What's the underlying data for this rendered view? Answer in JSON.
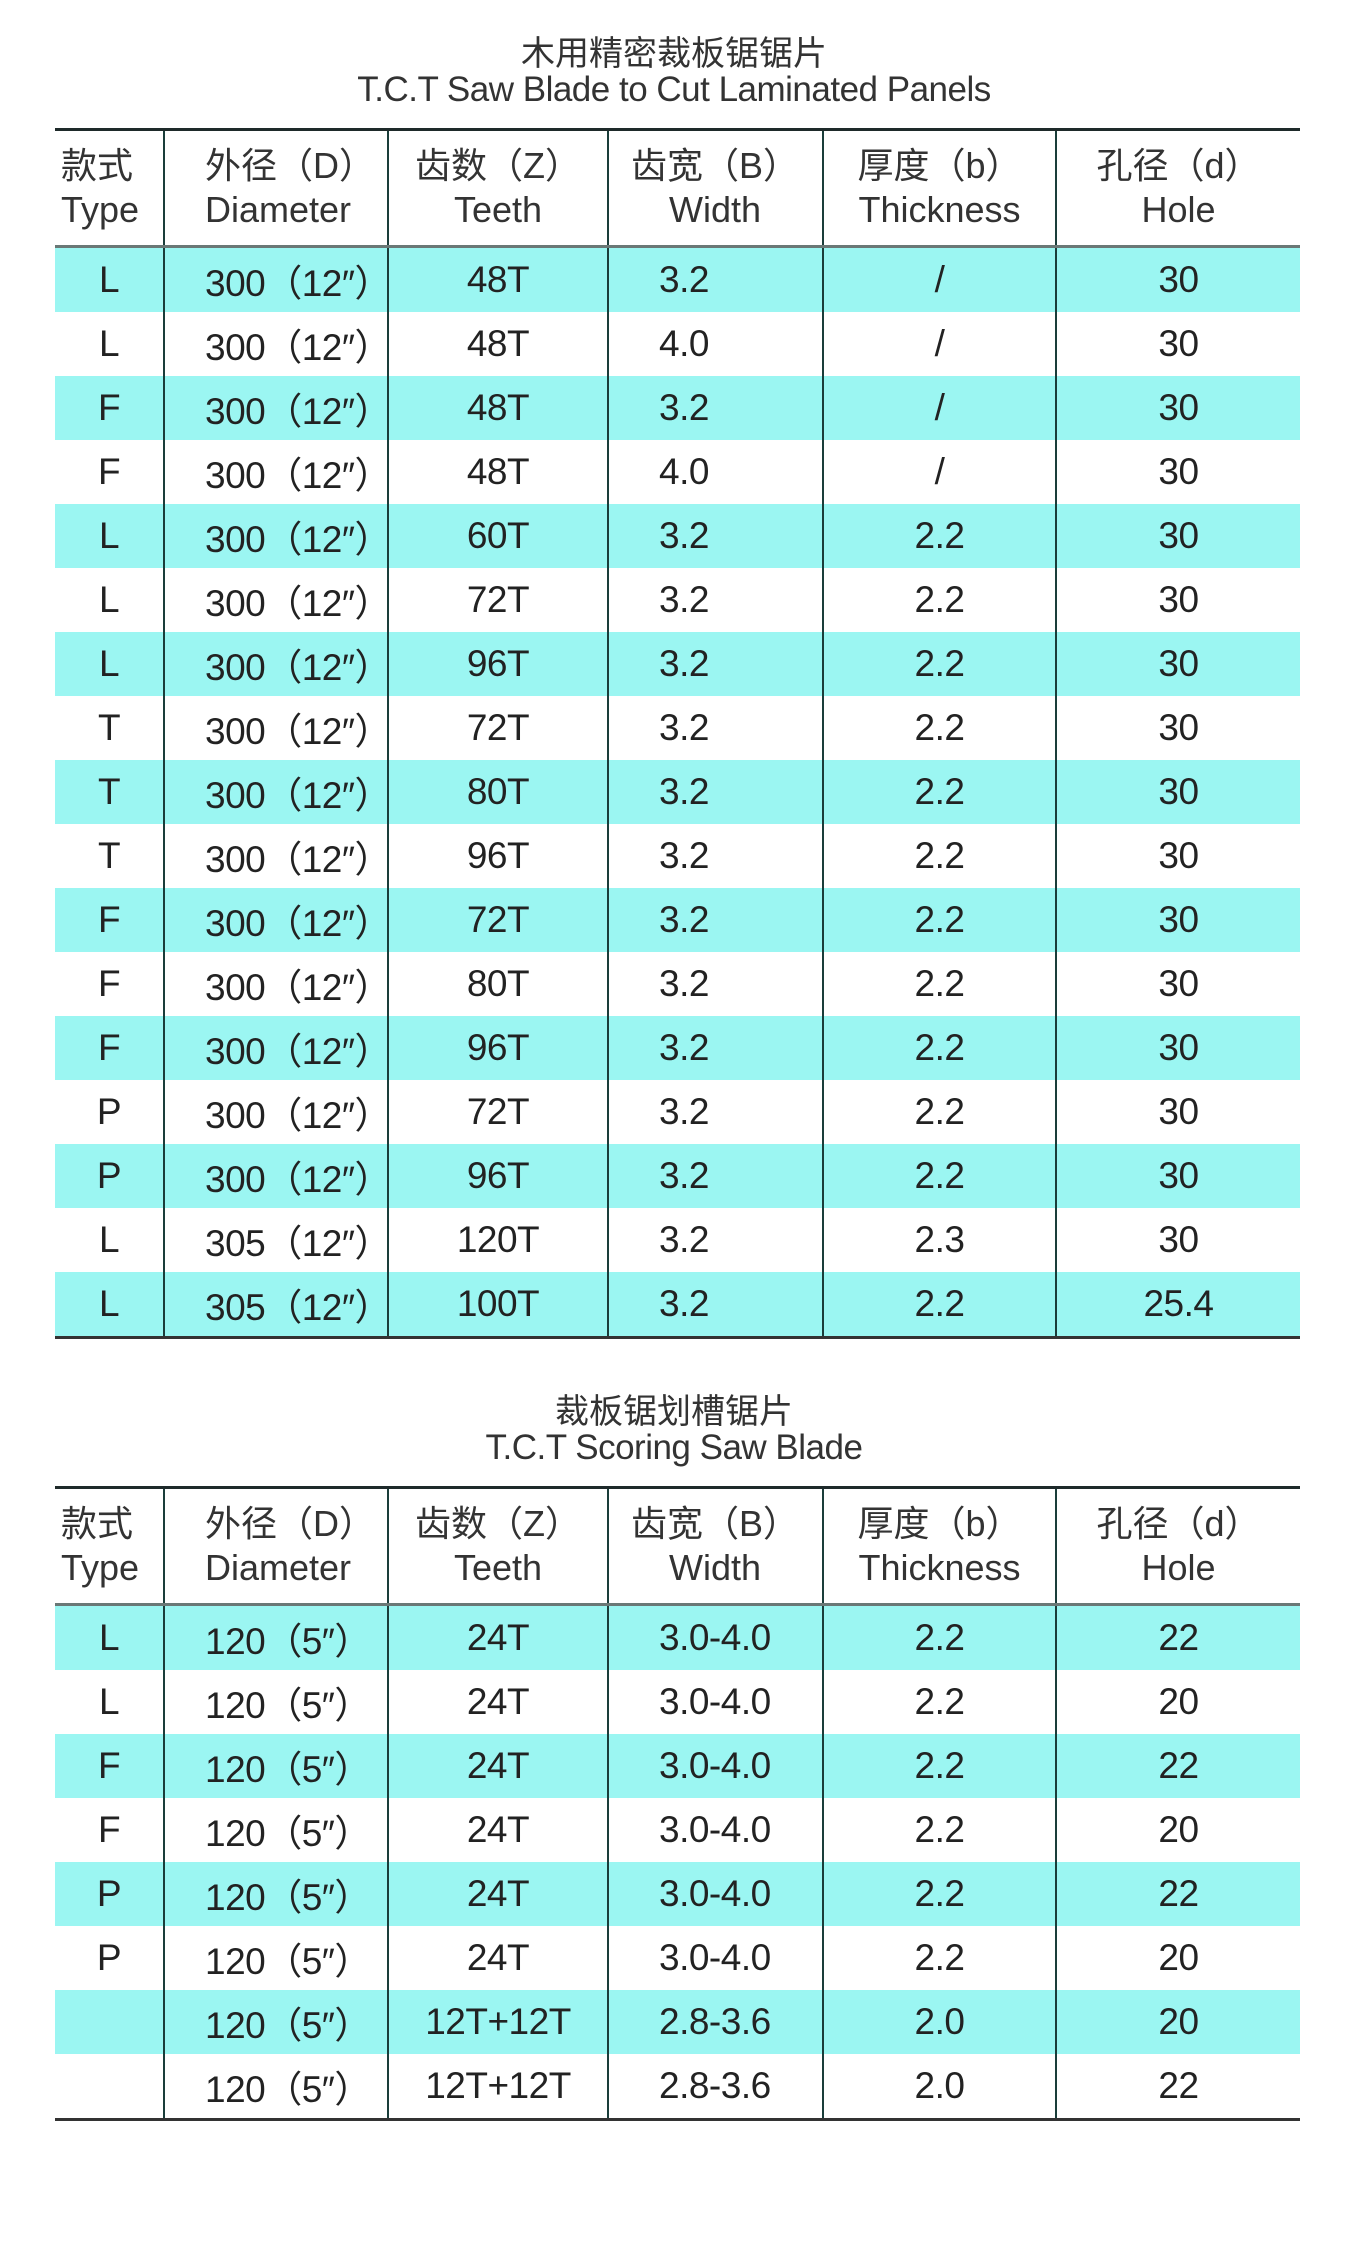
{
  "colors": {
    "highlight_row": "#9bf6f2",
    "grid_line": "#1a3d3a"
  },
  "headers": [
    {
      "cn": "款式",
      "en": "Type"
    },
    {
      "cn": "外径（D）",
      "en": "Diameter"
    },
    {
      "cn": "齿数（Z）",
      "en": "Teeth"
    },
    {
      "cn": "齿宽（B）",
      "en": "Width"
    },
    {
      "cn": "厚度（b）",
      "en": "Thickness"
    },
    {
      "cn": "孔径（d）",
      "en": "Hole"
    }
  ],
  "tables": [
    {
      "title_cn": "木用精密裁板锯锯片",
      "title_en": "T.C.T Saw Blade to Cut Laminated Panels",
      "rows": [
        [
          "L",
          "300（12″）",
          "48T",
          "3.2",
          "/",
          "30"
        ],
        [
          "L",
          "300（12″）",
          "48T",
          "4.0",
          "/",
          "30"
        ],
        [
          "F",
          "300（12″）",
          "48T",
          "3.2",
          "/",
          "30"
        ],
        [
          "F",
          "300（12″）",
          "48T",
          "4.0",
          "/",
          "30"
        ],
        [
          "L",
          "300（12″）",
          "60T",
          "3.2",
          "2.2",
          "30"
        ],
        [
          "L",
          "300（12″）",
          "72T",
          "3.2",
          "2.2",
          "30"
        ],
        [
          "L",
          "300（12″）",
          "96T",
          "3.2",
          "2.2",
          "30"
        ],
        [
          "T",
          "300（12″）",
          "72T",
          "3.2",
          "2.2",
          "30"
        ],
        [
          "T",
          "300（12″）",
          "80T",
          "3.2",
          "2.2",
          "30"
        ],
        [
          "T",
          "300（12″）",
          "96T",
          "3.2",
          "2.2",
          "30"
        ],
        [
          "F",
          "300（12″）",
          "72T",
          "3.2",
          "2.2",
          "30"
        ],
        [
          "F",
          "300（12″）",
          "80T",
          "3.2",
          "2.2",
          "30"
        ],
        [
          "F",
          "300（12″）",
          "96T",
          "3.2",
          "2.2",
          "30"
        ],
        [
          "P",
          "300（12″）",
          "72T",
          "3.2",
          "2.2",
          "30"
        ],
        [
          "P",
          "300（12″）",
          "96T",
          "3.2",
          "2.2",
          "30"
        ],
        [
          "L",
          "305（12″）",
          "120T",
          "3.2",
          "2.3",
          "30"
        ],
        [
          "L",
          "305（12″）",
          "100T",
          "3.2",
          "2.2",
          "25.4"
        ]
      ]
    },
    {
      "title_cn": "裁板锯划槽锯片",
      "title_en": "T.C.T Scoring Saw Blade",
      "rows": [
        [
          "L",
          "120（5″）",
          "24T",
          "3.0-4.0",
          "2.2",
          "22"
        ],
        [
          "L",
          "120（5″）",
          "24T",
          "3.0-4.0",
          "2.2",
          "20"
        ],
        [
          "F",
          "120（5″）",
          "24T",
          "3.0-4.0",
          "2.2",
          "22"
        ],
        [
          "F",
          "120（5″）",
          "24T",
          "3.0-4.0",
          "2.2",
          "20"
        ],
        [
          "P",
          "120（5″）",
          "24T",
          "3.0-4.0",
          "2.2",
          "22"
        ],
        [
          "P",
          "120（5″）",
          "24T",
          "3.0-4.0",
          "2.2",
          "20"
        ],
        [
          "",
          "120（5″）",
          "12T+12T",
          "2.8-3.6",
          "2.0",
          "20"
        ],
        [
          "",
          "120（5″）",
          "12T+12T",
          "2.8-3.6",
          "2.0",
          "22"
        ]
      ]
    }
  ]
}
